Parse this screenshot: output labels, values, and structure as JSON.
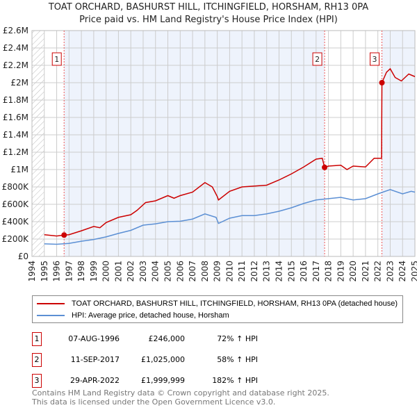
{
  "chart_data": {
    "type": "line",
    "title": "TOAT ORCHARD, BASHURST HILL, ITCHINGFIELD, HORSHAM, RH13 0PA",
    "subtitle": "Price paid vs. HM Land Registry's House Price Index (HPI)",
    "xlim": [
      1994,
      2025
    ],
    "ylim": [
      0,
      2600000
    ],
    "y_ticks": [
      {
        "v": 0,
        "label": "£0"
      },
      {
        "v": 200000,
        "label": "£200K"
      },
      {
        "v": 400000,
        "label": "£400K"
      },
      {
        "v": 600000,
        "label": "£600K"
      },
      {
        "v": 800000,
        "label": "£800K"
      },
      {
        "v": 1000000,
        "label": "£1M"
      },
      {
        "v": 1200000,
        "label": "£1.2M"
      },
      {
        "v": 1400000,
        "label": "£1.4M"
      },
      {
        "v": 1600000,
        "label": "£1.6M"
      },
      {
        "v": 1800000,
        "label": "£1.8M"
      },
      {
        "v": 2000000,
        "label": "£2M"
      },
      {
        "v": 2200000,
        "label": "£2.2M"
      },
      {
        "v": 2400000,
        "label": "£2.4M"
      },
      {
        "v": 2600000,
        "label": "£2.6M"
      }
    ],
    "x_ticks": [
      "1994",
      "1995",
      "1996",
      "1997",
      "1998",
      "1999",
      "2000",
      "2001",
      "2002",
      "2003",
      "2004",
      "2005",
      "2006",
      "2007",
      "2008",
      "2009",
      "2010",
      "2011",
      "2012",
      "2013",
      "2014",
      "2015",
      "2016",
      "2017",
      "2018",
      "2019",
      "2020",
      "2021",
      "2022",
      "2023",
      "2024",
      "2025"
    ],
    "series": [
      {
        "name": "TOAT ORCHARD, BASHURST HILL, ITCHINGFIELD, HORSHAM, RH13 0PA (detached house)",
        "color": "#cc0000",
        "x": [
          1995,
          1996,
          1996.6,
          1997,
          1998,
          1999,
          1999.5,
          2000,
          2001,
          2002,
          2002.5,
          2003.2,
          2004,
          2005,
          2005.5,
          2006,
          2007,
          2008,
          2008.6,
          2009,
          2009.1,
          2010,
          2011,
          2012,
          2013,
          2014,
          2015,
          2016,
          2017,
          2017.5,
          2017.69,
          2018,
          2019,
          2019.5,
          2020,
          2021,
          2021.7,
          2022.3,
          2022.33,
          2022.7,
          2023,
          2023.4,
          2023.9,
          2024.5,
          2025
        ],
        "y": [
          250000,
          235000,
          246000,
          250000,
          295000,
          345000,
          330000,
          390000,
          450000,
          480000,
          530000,
          620000,
          640000,
          700000,
          670000,
          700000,
          740000,
          850000,
          800000,
          690000,
          650000,
          750000,
          800000,
          810000,
          820000,
          880000,
          950000,
          1030000,
          1120000,
          1130000,
          1025000,
          1040000,
          1050000,
          1000000,
          1040000,
          1030000,
          1130000,
          1130000,
          2000000,
          2120000,
          2160000,
          2060000,
          2020000,
          2100000,
          2070000
        ]
      },
      {
        "name": "HPI: Average price, detached house, Horsham",
        "color": "#5b8fd4",
        "x": [
          1995,
          1996,
          1997,
          1998,
          1999,
          2000,
          2001,
          2002,
          2003,
          2004,
          2005,
          2006,
          2007,
          2008,
          2008.9,
          2009.1,
          2010,
          2011,
          2012,
          2013,
          2014,
          2015,
          2016,
          2017,
          2018,
          2019,
          2020,
          2021,
          2022,
          2023,
          2024,
          2024.7,
          2025
        ],
        "y": [
          145000,
          140000,
          150000,
          175000,
          195000,
          225000,
          265000,
          300000,
          360000,
          375000,
          400000,
          405000,
          430000,
          490000,
          450000,
          380000,
          440000,
          470000,
          470000,
          490000,
          520000,
          560000,
          610000,
          650000,
          665000,
          680000,
          650000,
          665000,
          720000,
          770000,
          720000,
          750000,
          740000
        ]
      }
    ],
    "sales": [
      {
        "label": "1",
        "x": 1996.6,
        "y": 246000,
        "date": "07-AUG-1996",
        "price": "£246,000",
        "hpi": "72% ↑ HPI"
      },
      {
        "label": "2",
        "x": 2017.69,
        "y": 1025000,
        "date": "11-SEP-2017",
        "price": "£1,025,000",
        "hpi": "58% ↑ HPI"
      },
      {
        "label": "3",
        "x": 2022.33,
        "y": 1999999,
        "date": "29-APR-2022",
        "price": "£1,999,999",
        "hpi": "182% ↑ HPI"
      }
    ]
  },
  "footer": {
    "line1": "Contains HM Land Registry data © Crown copyright and database right 2025.",
    "line2": "This data is licensed under the Open Government Licence v3.0."
  }
}
